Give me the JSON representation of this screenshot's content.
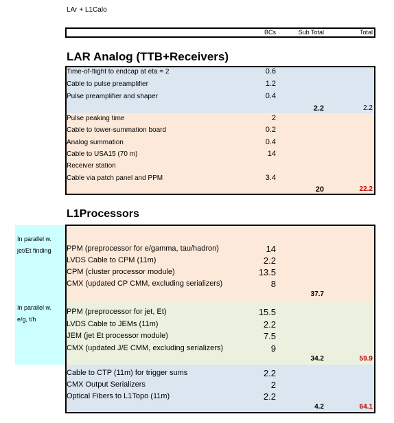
{
  "header": {
    "title": "LAr + L1Calo",
    "columns": [
      "BCs",
      "Sub Total",
      "Total"
    ]
  },
  "sections": [
    {
      "title": "LAR Analog (TTB+Receivers)",
      "groups": [
        {
          "rows": [
            {
              "label": "Time-of-flight to endcap at eta = 2",
              "bcs": 0.6
            },
            {
              "label": "Cable to pulse preamplifier",
              "bcs": 1.2
            },
            {
              "label": "Pulse preamplifier and shaper",
              "bcs": 0.4
            }
          ],
          "subtotal": 2.2,
          "total": 2.2
        },
        {
          "rows": [
            {
              "label": "Pulse peaking time",
              "bcs": 2
            },
            {
              "label": "Cable to tower-summation board",
              "bcs": 0.2
            },
            {
              "label": "Analog summation",
              "bcs": 0.4
            },
            {
              "label": "Cable to USA15 (70 m)",
              "bcs": 14
            },
            {
              "label": "Receiver station"
            },
            {
              "label": "Cable via patch panel and PPM",
              "bcs": 3.4
            }
          ],
          "subtotal": 20,
          "total": 22.2
        }
      ]
    },
    {
      "title": "L1Processors",
      "groups": [
        {
          "note": [
            "In parallel w.",
            "jet/Et finding"
          ],
          "rows": [
            {
              "label": "PPM (preprocessor for e/gamma, tau/hadron)",
              "bcs": 14
            },
            {
              "label": "LVDS Cable to CPM (11m)",
              "bcs": 2.2
            },
            {
              "label": "CPM (cluster processor module)",
              "bcs": 13.5
            },
            {
              "label": "CMX (updated CP CMM, excluding serializers)",
              "bcs": 8
            }
          ],
          "subtotal": 37.7
        },
        {
          "note": [
            "In parallel w.",
            "e/g, t/h"
          ],
          "rows": [
            {
              "label": "PPM (preprocessor for jet, Et)",
              "bcs": 15.5
            },
            {
              "label": "LVDS Cable to JEMs (11m)",
              "bcs": 2.2
            },
            {
              "label": "JEM (jet Et processor module)",
              "bcs": 7.5
            },
            {
              "label": "CMX (updated J/E CMM, excluding serializers)",
              "bcs": 9
            }
          ],
          "subtotal": 34.2,
          "total": 59.9
        },
        {
          "rows": [
            {
              "label": "Cable to CTP (11m) for trigger sums",
              "bcs": 2.2
            },
            {
              "label": "CMX Output Serializers",
              "bcs": 2
            },
            {
              "label": "Optical Fibers to L1Topo (11m)",
              "bcs": 2.2
            }
          ],
          "subtotal": 4.2,
          "total": 64.1
        }
      ]
    }
  ]
}
